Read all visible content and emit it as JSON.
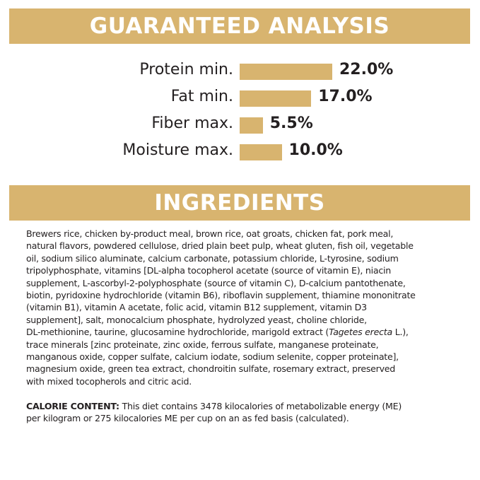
{
  "guaranteed_analysis": {
    "title": "GUARANTEED ANALYSIS",
    "bar_color": "#d8b46f",
    "items": [
      {
        "label": "Protein min.",
        "value": "22.0%",
        "percent": 22.0
      },
      {
        "label": "Fat min.",
        "value": "17.0%",
        "percent": 17.0
      },
      {
        "label": "Fiber max.",
        "value": "5.5%",
        "percent": 5.5
      },
      {
        "label": "Moisture max.",
        "value": "10.0%",
        "percent": 10.0
      }
    ]
  },
  "ingredients": {
    "title": "INGREDIENTS",
    "lines": [
      "Brewers rice, chicken by-product meal, brown rice, oat groats, chicken fat, pork meal,",
      "natural flavors, powdered cellulose, dried plain beet pulp, wheat gluten, fish oil, vegetable",
      "oil, sodium silico aluminate, calcium carbonate, potassium chloride, L-tyrosine, sodium",
      "tripolyphosphate, vitamins [DL-alpha tocopherol acetate (source of vitamin E), niacin",
      "supplement, L-ascorbyl-2-polyphosphate (source of vitamin C), D-calcium pantothenate,",
      "biotin, pyridoxine hydrochloride (vitamin B6), riboflavin supplement, thiamine mononitrate",
      "(vitamin B1), vitamin A acetate, folic acid, vitamin B12 supplement, vitamin D3",
      "supplement], salt, monocalcium phosphate, hydrolyzed yeast, choline chloride,"
    ],
    "line_italic": {
      "before": "DL-methionine, taurine, glucosamine hydrochloride, marigold extract (",
      "italic": "Tagetes erecta",
      "after": " L.),"
    },
    "lines_end": [
      "trace minerals [zinc proteinate, zinc oxide, ferrous sulfate, manganese proteinate,",
      "manganous oxide, copper sulfate, calcium iodate, sodium selenite, copper proteinate],",
      "magnesium oxide, green tea extract, chondroitin sulfate, rosemary extract, preserved",
      "with mixed tocopherols and citric acid."
    ]
  },
  "calorie_content": {
    "label": "CALORIE CONTENT:",
    "line1": " This diet contains 3478 kilocalories of metabolizable energy (ME)",
    "line2": "per kilogram or 275 kilocalories ME per cup on an as fed basis (calculated)."
  }
}
